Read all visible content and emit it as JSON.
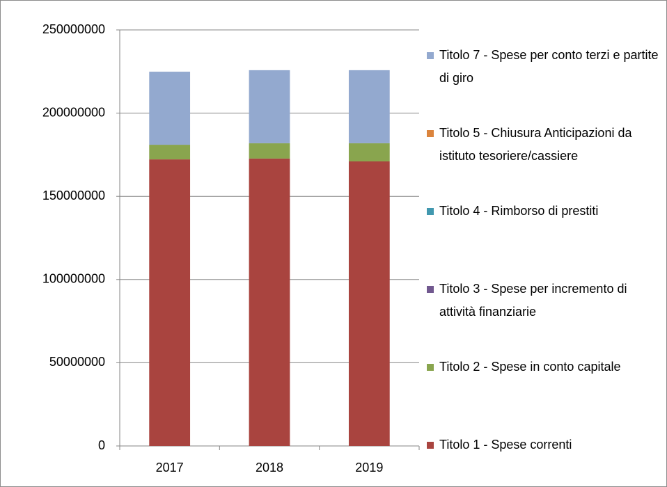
{
  "chart_data": {
    "type": "stacked_bar",
    "categories": [
      "2017",
      "2018",
      "2019"
    ],
    "series": [
      {
        "name": "Titolo 1 - Spese correnti",
        "color": "#a9443f",
        "values": [
          172200000,
          172700000,
          171000000
        ]
      },
      {
        "name": "Titolo 2 - Spese in conto capitale",
        "color": "#89a54e",
        "values": [
          8800000,
          9200000,
          10900000
        ]
      },
      {
        "name": "Titolo 3 - Spese per incremento di attività finanziarie",
        "color": "#71588f",
        "values": [
          0,
          0,
          0
        ]
      },
      {
        "name": "Titolo 4 - Rimborso di prestiti",
        "color": "#4198af",
        "values": [
          0,
          0,
          0
        ]
      },
      {
        "name": "Titolo 5 - Chiusura Anticipazioni da istituto tesoriere/cassiere",
        "color": "#db843d",
        "values": [
          0,
          0,
          0
        ]
      },
      {
        "name": "Titolo 7 - Spese per conto terzi e partite di giro",
        "color": "#93a9cf",
        "values": [
          43900000,
          43900000,
          43900000
        ]
      }
    ],
    "ylim": [
      0,
      250000000
    ],
    "yticks": [
      0,
      50000000,
      100000000,
      150000000,
      200000000,
      250000000
    ],
    "grid": true,
    "legend": "right"
  }
}
